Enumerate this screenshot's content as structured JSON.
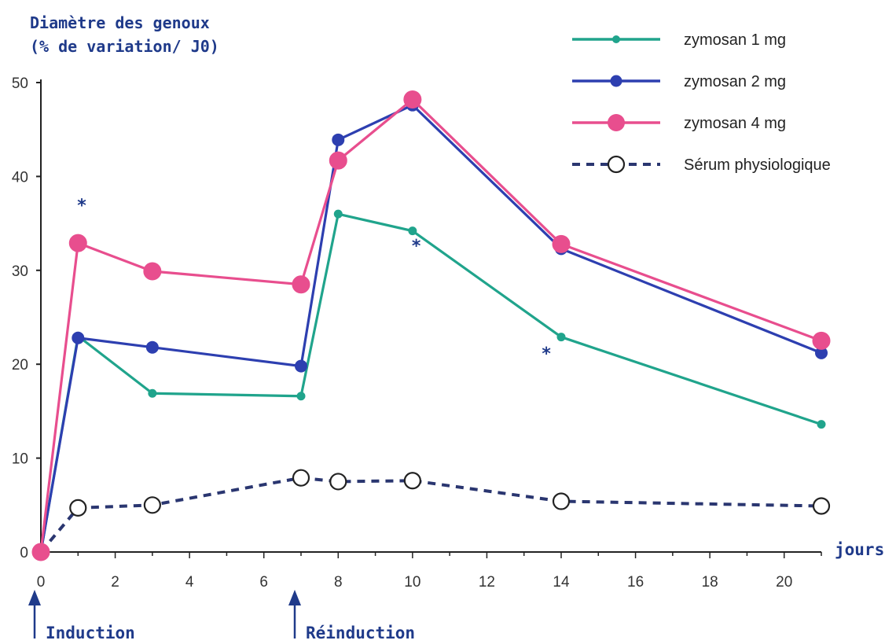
{
  "chart_data": {
    "type": "line",
    "ylabel_line1": "Diamètre des genoux",
    "ylabel_line2": "(% de variation/ J0)",
    "xlabel": "jours",
    "xlim": [
      0,
      21
    ],
    "ylim": [
      0,
      50
    ],
    "x_ticks": [
      0,
      2,
      4,
      6,
      8,
      10,
      12,
      14,
      16,
      18,
      20
    ],
    "y_ticks": [
      0,
      10,
      20,
      30,
      40,
      50
    ],
    "grid": false,
    "legend_position": "top-right",
    "series": [
      {
        "name": "zymosan 1 mg",
        "color": "#20a48c",
        "style": "solid",
        "marker": "small-dot",
        "points": [
          [
            0,
            0
          ],
          [
            1,
            23
          ],
          [
            3,
            16.9
          ],
          [
            7,
            16.6
          ],
          [
            8,
            36
          ],
          [
            10,
            34.2
          ],
          [
            14,
            22.9
          ],
          [
            21,
            13.6
          ]
        ]
      },
      {
        "name": "zymosan 2 mg",
        "color": "#2d3fb0",
        "style": "solid",
        "marker": "medium-dot",
        "points": [
          [
            0,
            0
          ],
          [
            1,
            22.8
          ],
          [
            3,
            21.8
          ],
          [
            7,
            19.8
          ],
          [
            8,
            43.9
          ],
          [
            10,
            47.6
          ],
          [
            14,
            32.3
          ],
          [
            21,
            21.2
          ]
        ]
      },
      {
        "name": "zymosan 4 mg",
        "color": "#e84e8e",
        "style": "solid",
        "marker": "large-dot",
        "points": [
          [
            0,
            0
          ],
          [
            1,
            32.9
          ],
          [
            3,
            29.9
          ],
          [
            7,
            28.5
          ],
          [
            8,
            41.7
          ],
          [
            10,
            48.2
          ],
          [
            14,
            32.8
          ],
          [
            21,
            22.5
          ]
        ]
      },
      {
        "name": "Sérum physiologique",
        "color": "#2a3670",
        "style": "dashed",
        "marker": "open-circle",
        "points": [
          [
            0,
            0
          ],
          [
            1,
            4.7
          ],
          [
            3,
            5
          ],
          [
            7,
            7.9
          ],
          [
            8,
            7.5
          ],
          [
            10,
            7.6
          ],
          [
            14,
            5.4
          ],
          [
            21,
            4.9
          ]
        ]
      }
    ],
    "significance_marks": [
      {
        "label": "*",
        "x": 1.1,
        "y": 36.3
      },
      {
        "label": "*",
        "x": 10.1,
        "y": 32
      },
      {
        "label": "*",
        "x": 13.6,
        "y": 20.5
      }
    ],
    "annotations": [
      {
        "label": "Induction",
        "x": 0
      },
      {
        "label": "Réinduction",
        "x": 7
      }
    ]
  }
}
